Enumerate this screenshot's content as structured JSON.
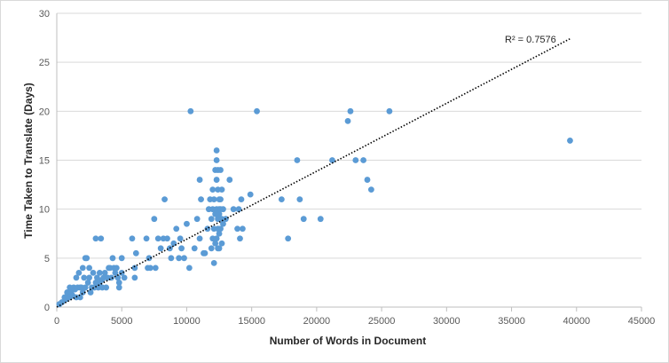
{
  "chart_data": {
    "type": "scatter",
    "title": "",
    "xlabel": "Number of Words in Document",
    "ylabel": "Time Taken to Translate (Days)",
    "xlim": [
      0,
      45000
    ],
    "ylim": [
      0,
      30
    ],
    "xticks": [
      0,
      5000,
      10000,
      15000,
      20000,
      25000,
      30000,
      35000,
      40000,
      45000
    ],
    "yticks": [
      0,
      5,
      10,
      15,
      20,
      25,
      30
    ],
    "grid": "horizontal",
    "legend": "none",
    "point_color": "#5b9bd5",
    "trendline": {
      "type": "linear",
      "style": "dotted",
      "color": "#000000",
      "x": [
        0,
        39500
      ],
      "y": [
        0,
        27.4
      ]
    },
    "annotation": "R² = 0.7576",
    "x": [
      200,
      400,
      600,
      700,
      800,
      900,
      1000,
      1000,
      1100,
      1200,
      1300,
      1400,
      1500,
      1500,
      1600,
      1700,
      1800,
      1800,
      1900,
      2000,
      2000,
      2100,
      2200,
      2200,
      2300,
      2400,
      2500,
      2500,
      2600,
      2700,
      2800,
      2900,
      3000,
      3000,
      3100,
      3200,
      3300,
      3300,
      3400,
      3500,
      3500,
      3600,
      3700,
      3800,
      3900,
      4000,
      4100,
      4200,
      4300,
      4400,
      4500,
      4600,
      4700,
      4800,
      4800,
      5000,
      5000,
      5200,
      5800,
      6000,
      6000,
      6100,
      6900,
      7000,
      7100,
      7200,
      7500,
      7600,
      7800,
      8000,
      8200,
      8300,
      8500,
      8700,
      8800,
      9000,
      9200,
      9400,
      9500,
      9600,
      9800,
      10000,
      10200,
      10300,
      10600,
      10800,
      11000,
      11000,
      11100,
      11300,
      11400,
      11600,
      11700,
      11800,
      11900,
      11900,
      12000,
      12000,
      12000,
      12100,
      12100,
      12100,
      12200,
      12200,
      12200,
      12300,
      12300,
      12300,
      12300,
      12300,
      12400,
      12400,
      12400,
      12400,
      12400,
      12500,
      12500,
      12500,
      12500,
      12500,
      12600,
      12600,
      12600,
      12600,
      12700,
      12700,
      12700,
      12800,
      12800,
      13000,
      13300,
      13600,
      13900,
      14000,
      14100,
      14200,
      14300,
      14900,
      15400,
      17300,
      17800,
      18500,
      18700,
      19000,
      20300,
      21200,
      22400,
      22600,
      23000,
      23600,
      23900,
      24200,
      25600,
      39500
    ],
    "y": [
      0.3,
      0.5,
      1,
      0.8,
      1.5,
      1,
      2,
      1,
      1.5,
      1.2,
      2,
      1.8,
      3,
      1,
      2,
      3.5,
      2,
      1,
      2,
      4,
      1.5,
      3,
      5,
      2,
      5,
      2.5,
      4,
      3,
      1.5,
      2,
      3.5,
      2,
      7,
      2.5,
      3,
      2,
      2.5,
      3.5,
      7,
      2,
      2.8,
      3,
      3.5,
      2,
      3,
      4,
      4,
      3,
      5,
      4,
      3.5,
      4,
      3,
      2.5,
      2,
      5,
      3.5,
      3,
      7,
      4,
      3,
      5.5,
      7,
      4,
      5,
      4,
      9,
      4,
      7,
      6,
      7,
      11,
      7,
      6,
      5,
      6.5,
      8,
      5,
      7,
      6,
      5,
      8.5,
      4,
      20,
      6,
      9,
      13,
      7,
      11,
      5.5,
      5.5,
      8,
      10,
      11,
      9,
      6,
      12,
      10,
      7,
      11,
      8,
      4.5,
      14,
      9.5,
      6.5,
      16,
      15,
      13,
      10,
      7,
      14,
      12,
      9,
      8,
      6,
      11,
      10,
      9.5,
      7.5,
      6,
      14,
      11,
      10,
      8,
      12,
      9,
      6.5,
      10,
      8.5,
      9,
      13,
      10,
      8,
      10,
      7,
      11,
      8,
      11.5,
      20,
      11,
      7,
      15,
      11,
      9,
      9,
      15,
      19,
      20,
      15,
      15,
      13,
      12,
      20,
      17
    ]
  }
}
